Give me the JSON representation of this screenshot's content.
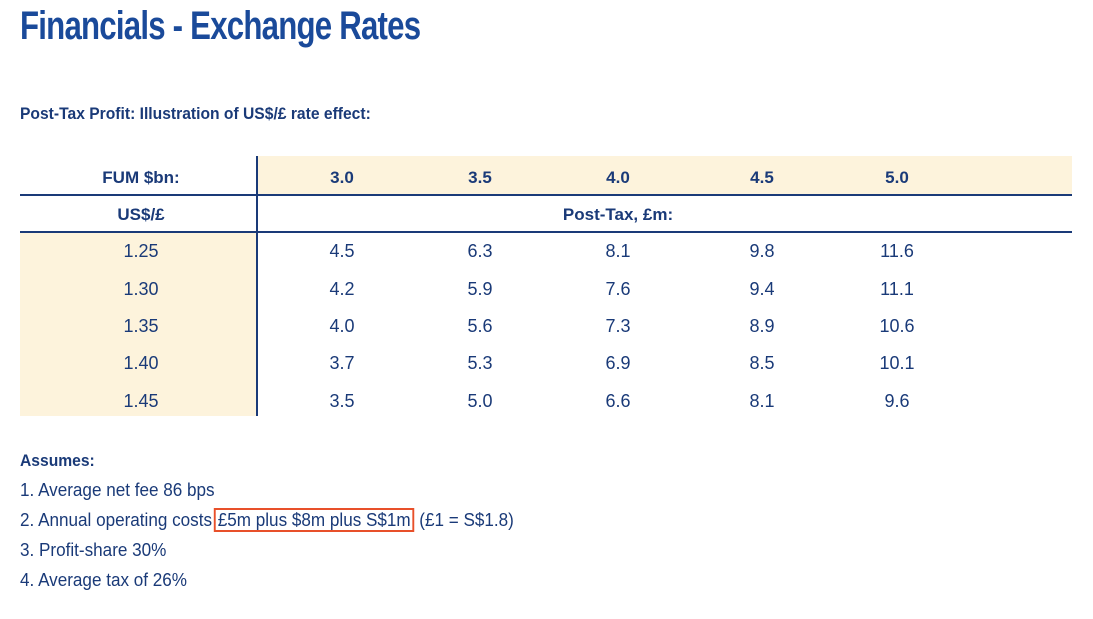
{
  "title": "Financials - Exchange Rates",
  "subtitle": "Post-Tax Profit: Illustration of US$/£ rate effect:",
  "table": {
    "row_header_label": "FUM $bn:",
    "col_header_label": "US$/£",
    "span_label": "Post-Tax, £m:",
    "fum": [
      "3.0",
      "3.5",
      "4.0",
      "4.5",
      "5.0"
    ],
    "rows": [
      {
        "rate": "1.25",
        "values": [
          "4.5",
          "6.3",
          "8.1",
          "9.8",
          "11.6"
        ]
      },
      {
        "rate": "1.30",
        "values": [
          "4.2",
          "5.9",
          "7.6",
          "9.4",
          "11.1"
        ]
      },
      {
        "rate": "1.35",
        "values": [
          "4.0",
          "5.6",
          "7.3",
          "8.9",
          "10.6"
        ]
      },
      {
        "rate": "1.40",
        "values": [
          "3.7",
          "5.3",
          "6.9",
          "8.5",
          "10.1"
        ]
      },
      {
        "rate": "1.45",
        "values": [
          "3.5",
          "5.0",
          "6.6",
          "8.1",
          "9.6"
        ]
      }
    ]
  },
  "assumes": {
    "heading": "Assumes:",
    "note1": "1. Average net fee 86 bps",
    "note2_prefix": "2. Annual operating costs",
    "note2_highlight": "£5m plus $8m plus S$1m",
    "note2_suffix": "(£1 = S$1.8)",
    "note3": "3. Profit-share 30%",
    "note4": "4. Average tax of 26%"
  },
  "colors": {
    "title": "#1a4a9a",
    "text": "#1a3a78",
    "band": "#fdf3dc",
    "highlight_border": "#e8502a"
  }
}
